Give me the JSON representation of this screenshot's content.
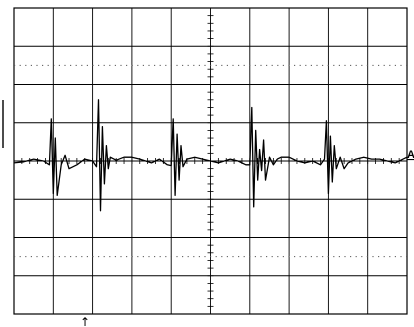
{
  "chart_data": {
    "type": "line",
    "title": "",
    "xlabel": "",
    "ylabel": "",
    "divisions": {
      "x": 10,
      "y": 8
    },
    "minor_ticks_per_division": 5,
    "xlim": [
      0,
      10
    ],
    "ylim": [
      -4,
      4
    ],
    "grid": true,
    "channel_marker": "A",
    "trigger_marker": "↑",
    "series": [
      {
        "x": [
          0.0,
          0.25,
          0.5,
          0.75,
          0.9,
          0.95,
          1.0,
          1.05,
          1.1,
          1.2,
          1.3,
          1.4,
          1.6,
          1.8,
          2.0,
          2.1,
          2.15,
          2.2,
          2.25,
          2.3,
          2.35,
          2.4,
          2.45,
          2.6,
          2.8,
          3.0,
          3.2,
          3.5,
          3.7,
          3.9,
          4.0,
          4.05,
          4.1,
          4.15,
          4.2,
          4.25,
          4.3,
          4.4,
          4.6,
          4.8,
          5.0,
          5.2,
          5.5,
          5.7,
          5.9,
          6.0,
          6.05,
          6.1,
          6.15,
          6.2,
          6.25,
          6.3,
          6.35,
          6.4,
          6.5,
          6.6,
          6.7,
          6.8,
          7.0,
          7.2,
          7.4,
          7.6,
          7.8,
          7.9,
          7.95,
          8.0,
          8.05,
          8.1,
          8.15,
          8.2,
          8.3,
          8.4,
          8.5,
          8.7,
          8.9,
          9.1,
          9.3,
          9.5,
          9.7,
          9.9,
          10.0
        ],
        "y": [
          -0.05,
          -0.02,
          0.05,
          0.0,
          -0.1,
          1.1,
          -0.85,
          0.6,
          -0.9,
          -0.1,
          0.15,
          -0.2,
          -0.1,
          0.05,
          0.0,
          -0.15,
          1.6,
          -1.3,
          0.9,
          -0.6,
          0.4,
          -0.2,
          0.1,
          0.02,
          0.1,
          0.1,
          0.05,
          -0.05,
          0.05,
          -0.1,
          -0.12,
          1.1,
          -0.9,
          0.7,
          -0.5,
          0.4,
          -0.15,
          0.05,
          0.1,
          0.05,
          0.0,
          -0.05,
          0.05,
          0.0,
          -0.1,
          -0.1,
          1.4,
          -1.2,
          0.8,
          -0.5,
          0.3,
          -0.25,
          0.55,
          -0.5,
          0.1,
          -0.1,
          0.05,
          0.1,
          0.1,
          0.0,
          -0.05,
          0.0,
          -0.1,
          0.05,
          1.05,
          -0.85,
          0.65,
          -0.55,
          0.4,
          -0.2,
          0.1,
          -0.2,
          -0.05,
          0.05,
          0.1,
          0.05,
          0.05,
          0.0,
          -0.05,
          0.05,
          0.1
        ]
      }
    ]
  }
}
